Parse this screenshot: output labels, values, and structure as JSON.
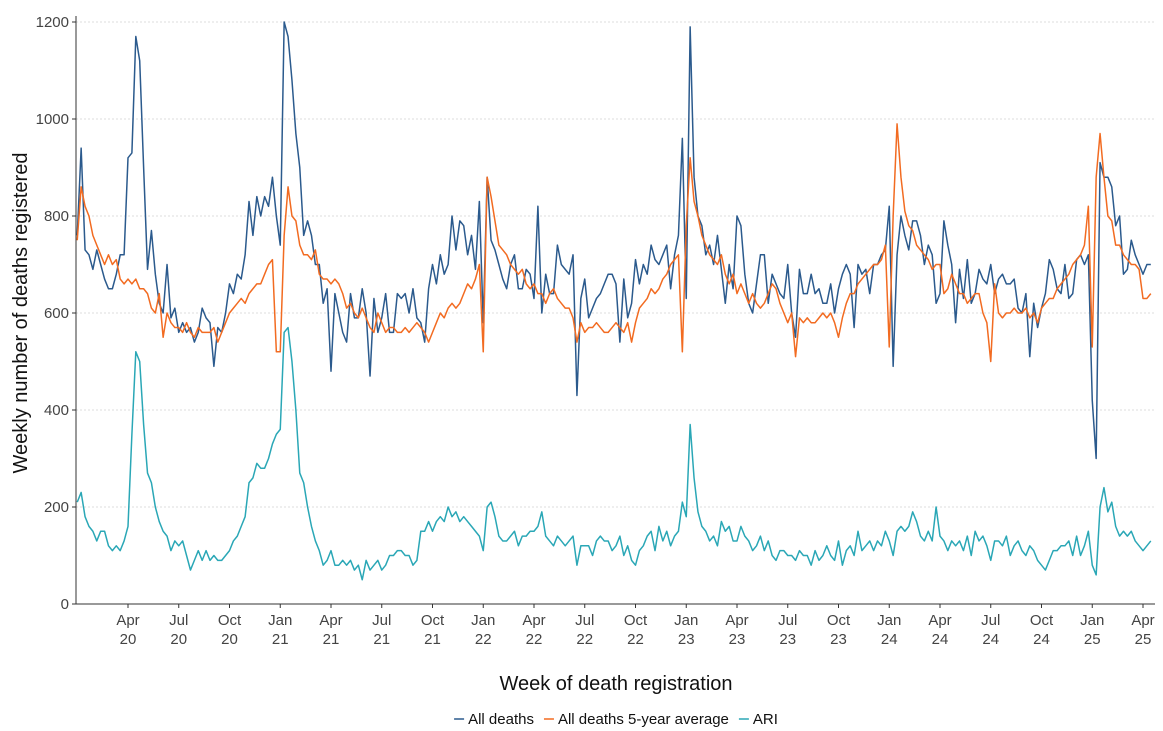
{
  "chart_data": {
    "type": "line",
    "x_label": "Week of death registration",
    "y_label": "Weekly number of deaths registered",
    "ylim": [
      0,
      1200
    ],
    "yticks": [
      0,
      200,
      400,
      600,
      800,
      1000,
      1200
    ],
    "grid": true,
    "legend": "bottom",
    "categories": [
      null,
      null,
      null,
      null,
      null,
      null,
      null,
      null,
      null,
      null,
      null,
      null,
      null,
      "Apr 20",
      null,
      null,
      null,
      null,
      null,
      null,
      null,
      null,
      null,
      null,
      null,
      null,
      "Jul 20",
      null,
      null,
      null,
      null,
      null,
      null,
      null,
      null,
      null,
      null,
      null,
      null,
      "Oct 20",
      null,
      null,
      null,
      null,
      null,
      null,
      null,
      null,
      null,
      null,
      null,
      null,
      "Jan 21",
      null,
      null,
      null,
      null,
      null,
      null,
      null,
      null,
      null,
      null,
      null,
      null,
      "Apr 21",
      null,
      null,
      null,
      null,
      null,
      null,
      null,
      null,
      null,
      null,
      null,
      null,
      "Jul 21",
      null,
      null,
      null,
      null,
      null,
      null,
      null,
      null,
      null,
      null,
      null,
      null,
      "Oct 21",
      null,
      null,
      null,
      null,
      null,
      null,
      null,
      null,
      null,
      null,
      null,
      null,
      "Jan 22",
      null,
      null,
      null,
      null,
      null,
      null,
      null,
      null,
      null,
      null,
      null,
      null,
      "Apr 22",
      null,
      null,
      null,
      null,
      null,
      null,
      null,
      null,
      null,
      null,
      null,
      null,
      "Jul 22",
      null,
      null,
      null,
      null,
      null,
      null,
      null,
      null,
      null,
      null,
      null,
      null,
      "Oct 22",
      null,
      null,
      null,
      null,
      null,
      null,
      null,
      null,
      null,
      null,
      null,
      null,
      "Jan 23",
      null,
      null,
      null,
      null,
      null,
      null,
      null,
      null,
      null,
      null,
      null,
      null,
      "Apr 23",
      null,
      null,
      null,
      null,
      null,
      null,
      null,
      null,
      null,
      null,
      null,
      null,
      "Jul 23",
      null,
      null,
      null,
      null,
      null,
      null,
      null,
      null,
      null,
      null,
      null,
      null,
      "Oct 23",
      null,
      null,
      null,
      null,
      null,
      null,
      null,
      null,
      null,
      null,
      null,
      null,
      "Jan 24",
      null,
      null,
      null,
      null,
      null,
      null,
      null,
      null,
      null,
      null,
      null,
      null,
      "Apr 24",
      null,
      null,
      null,
      null,
      null,
      null,
      null,
      null,
      null,
      null,
      null,
      null,
      "Jul 24",
      null,
      null,
      null,
      null,
      null,
      null,
      null,
      null,
      null,
      null,
      null,
      null,
      "Oct 24",
      null,
      null,
      null,
      null,
      null,
      null,
      null,
      null,
      null,
      null,
      null,
      null,
      "Jan 25",
      null,
      null,
      null,
      null,
      null,
      null,
      null,
      null,
      null,
      null,
      null,
      null,
      "Apr 25",
      null,
      null
    ],
    "series": [
      {
        "name": "All deaths",
        "color": "#2b5a8d",
        "values": [
          760,
          940,
          730,
          720,
          690,
          730,
          700,
          670,
          650,
          650,
          680,
          720,
          720,
          920,
          930,
          1170,
          1120,
          900,
          690,
          770,
          680,
          620,
          600,
          700,
          590,
          610,
          560,
          580,
          560,
          570,
          540,
          560,
          610,
          590,
          580,
          490,
          570,
          560,
          600,
          660,
          640,
          680,
          670,
          720,
          830,
          760,
          840,
          800,
          840,
          820,
          880,
          800,
          740,
          1200,
          1170,
          1080,
          970,
          900,
          760,
          790,
          760,
          700,
          700,
          620,
          650,
          480,
          640,
          600,
          560,
          540,
          640,
          590,
          590,
          650,
          600,
          470,
          630,
          560,
          590,
          640,
          560,
          560,
          640,
          630,
          640,
          600,
          650,
          590,
          580,
          540,
          650,
          700,
          660,
          720,
          680,
          700,
          800,
          730,
          790,
          780,
          720,
          760,
          690,
          830,
          580,
          880,
          750,
          730,
          700,
          670,
          650,
          700,
          720,
          650,
          650,
          690,
          680,
          630,
          820,
          600,
          680,
          640,
          640,
          740,
          700,
          690,
          680,
          720,
          430,
          630,
          670,
          590,
          610,
          630,
          640,
          660,
          680,
          680,
          660,
          540,
          670,
          590,
          620,
          710,
          660,
          700,
          680,
          740,
          710,
          700,
          720,
          740,
          650,
          720,
          760,
          960,
          630,
          1190,
          880,
          800,
          780,
          720,
          740,
          700,
          760,
          690,
          620,
          700,
          650,
          800,
          780,
          680,
          620,
          600,
          660,
          720,
          720,
          620,
          680,
          660,
          640,
          630,
          700,
          600,
          550,
          690,
          640,
          640,
          680,
          640,
          650,
          620,
          620,
          660,
          600,
          650,
          680,
          700,
          680,
          570,
          700,
          680,
          690,
          640,
          700,
          700,
          720,
          730,
          820,
          490,
          720,
          800,
          760,
          730,
          790,
          790,
          760,
          700,
          740,
          720,
          620,
          640,
          790,
          740,
          700,
          580,
          690,
          630,
          710,
          620,
          640,
          690,
          670,
          660,
          700,
          640,
          670,
          680,
          660,
          660,
          670,
          610,
          600,
          640,
          510,
          620,
          570,
          610,
          640,
          710,
          690,
          650,
          640,
          700,
          630,
          640,
          710,
          720,
          700,
          720,
          420,
          300,
          910,
          880,
          880,
          860,
          780,
          800,
          680,
          690,
          750,
          720,
          700,
          680,
          700,
          700
        ]
      },
      {
        "name": "All deaths 5-year average",
        "color": "#f26b21",
        "values": [
          750,
          860,
          820,
          800,
          760,
          740,
          720,
          700,
          720,
          700,
          710,
          670,
          660,
          670,
          660,
          670,
          650,
          650,
          640,
          610,
          600,
          640,
          550,
          600,
          580,
          570,
          570,
          560,
          580,
          560,
          550,
          570,
          560,
          560,
          560,
          570,
          540,
          560,
          580,
          600,
          610,
          620,
          630,
          620,
          640,
          650,
          660,
          660,
          680,
          700,
          710,
          520,
          520,
          760,
          860,
          800,
          790,
          740,
          720,
          720,
          710,
          730,
          680,
          670,
          670,
          660,
          670,
          660,
          640,
          610,
          620,
          600,
          590,
          610,
          590,
          570,
          560,
          600,
          580,
          560,
          570,
          570,
          560,
          560,
          570,
          560,
          570,
          580,
          570,
          560,
          540,
          560,
          580,
          600,
          590,
          610,
          620,
          610,
          620,
          640,
          660,
          650,
          670,
          700,
          520,
          880,
          840,
          790,
          740,
          730,
          720,
          700,
          690,
          680,
          690,
          660,
          650,
          660,
          640,
          640,
          620,
          640,
          650,
          630,
          620,
          610,
          610,
          590,
          540,
          580,
          560,
          570,
          570,
          580,
          570,
          560,
          560,
          570,
          580,
          570,
          560,
          580,
          540,
          580,
          610,
          620,
          630,
          650,
          640,
          650,
          670,
          680,
          700,
          710,
          720,
          520,
          780,
          920,
          830,
          800,
          760,
          740,
          720,
          710,
          700,
          720,
          680,
          660,
          680,
          640,
          660,
          640,
          620,
          640,
          620,
          610,
          620,
          640,
          660,
          650,
          620,
          600,
          580,
          600,
          510,
          590,
          580,
          590,
          580,
          580,
          590,
          600,
          590,
          600,
          580,
          550,
          590,
          620,
          640,
          640,
          660,
          670,
          680,
          690,
          700,
          700,
          710,
          740,
          530,
          800,
          990,
          880,
          810,
          780,
          770,
          740,
          730,
          720,
          710,
          690,
          700,
          700,
          640,
          650,
          680,
          660,
          640,
          640,
          620,
          630,
          640,
          640,
          600,
          580,
          500,
          660,
          600,
          590,
          600,
          600,
          610,
          600,
          600,
          610,
          590,
          600,
          580,
          610,
          620,
          630,
          630,
          650,
          660,
          670,
          680,
          700,
          710,
          720,
          740,
          820,
          530,
          880,
          970,
          880,
          800,
          790,
          740,
          740,
          720,
          710,
          700,
          700,
          690,
          630,
          630,
          640
        ]
      },
      {
        "name": "ARI",
        "color": "#2aa7b6",
        "values": [
          210,
          230,
          180,
          160,
          150,
          130,
          150,
          150,
          120,
          110,
          120,
          110,
          130,
          160,
          350,
          520,
          500,
          370,
          270,
          250,
          200,
          170,
          150,
          140,
          110,
          130,
          120,
          130,
          100,
          70,
          90,
          110,
          90,
          110,
          90,
          100,
          90,
          90,
          100,
          110,
          130,
          140,
          160,
          180,
          250,
          260,
          290,
          280,
          280,
          300,
          330,
          350,
          360,
          560,
          570,
          500,
          400,
          270,
          250,
          200,
          160,
          130,
          110,
          80,
          90,
          110,
          80,
          80,
          90,
          80,
          90,
          70,
          80,
          50,
          90,
          70,
          80,
          90,
          70,
          80,
          100,
          100,
          110,
          110,
          100,
          100,
          80,
          90,
          150,
          150,
          170,
          150,
          170,
          180,
          170,
          200,
          180,
          190,
          170,
          180,
          170,
          160,
          150,
          140,
          110,
          200,
          210,
          180,
          140,
          130,
          130,
          140,
          150,
          120,
          140,
          140,
          150,
          150,
          160,
          190,
          140,
          130,
          120,
          140,
          130,
          120,
          130,
          140,
          80,
          120,
          120,
          120,
          100,
          130,
          140,
          130,
          130,
          110,
          120,
          140,
          100,
          120,
          90,
          80,
          110,
          120,
          140,
          150,
          110,
          160,
          130,
          150,
          120,
          140,
          150,
          210,
          180,
          370,
          260,
          190,
          160,
          150,
          130,
          140,
          120,
          170,
          150,
          160,
          130,
          130,
          160,
          140,
          130,
          110,
          120,
          140,
          110,
          130,
          100,
          90,
          110,
          110,
          100,
          100,
          90,
          110,
          100,
          100,
          80,
          110,
          90,
          100,
          120,
          100,
          90,
          130,
          80,
          110,
          120,
          100,
          150,
          110,
          120,
          130,
          110,
          130,
          120,
          150,
          130,
          100,
          150,
          160,
          150,
          160,
          190,
          170,
          140,
          130,
          150,
          130,
          200,
          140,
          130,
          110,
          130,
          120,
          130,
          110,
          140,
          100,
          150,
          130,
          140,
          120,
          90,
          130,
          130,
          120,
          140,
          100,
          120,
          130,
          110,
          100,
          120,
          110,
          90,
          80,
          70,
          90,
          110,
          110,
          120,
          120,
          130,
          100,
          140,
          100,
          120,
          150,
          80,
          60,
          200,
          240,
          190,
          210,
          160,
          140,
          150,
          140,
          150,
          130,
          120,
          110,
          120,
          130
        ]
      }
    ]
  }
}
